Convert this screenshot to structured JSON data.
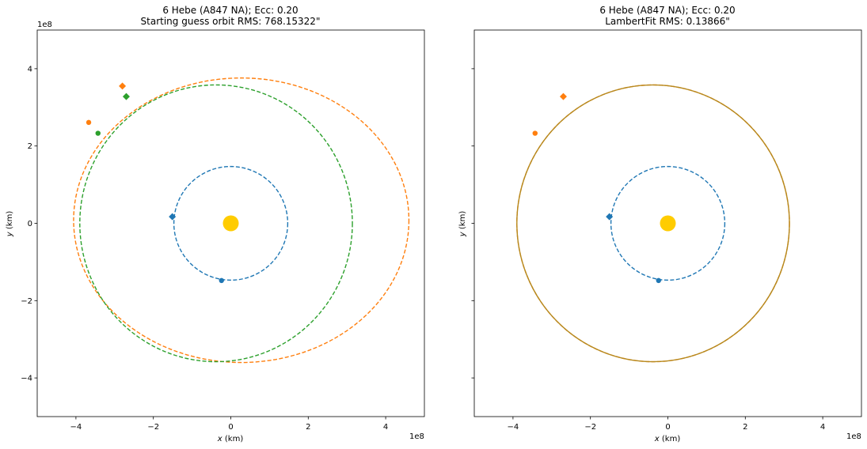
{
  "chart_data": [
    {
      "type": "line",
      "title_line1": "6 Hebe (A847 NA); Ecc: 0.20",
      "title_line2": "Starting guess orbit RMS: 768.15322\"",
      "xlabel_var": "x",
      "xlabel_unit": " (km)",
      "ylabel_var": "y",
      "ylabel_unit": " (km)",
      "xlim": [
        -5.0,
        5.0
      ],
      "ylim": [
        -5.0,
        5.0
      ],
      "x_offset_text": "1e8",
      "y_offset_text": "1e8",
      "xticks": [
        -4,
        -2,
        0,
        2,
        4
      ],
      "xtick_labels": [
        "−4",
        "−2",
        "0",
        "2",
        "4"
      ],
      "yticks": [
        -4,
        -2,
        0,
        2,
        4
      ],
      "ytick_labels": [
        "−4",
        "−2",
        "0",
        "2",
        "4"
      ],
      "show_yticklabels": true,
      "grid": false,
      "sun": {
        "x": 0,
        "y": 0,
        "color": "#FFCC00"
      },
      "series": [
        {
          "orbit": {
            "cx": 0.0,
            "cy": 0.0,
            "rx": 1.47,
            "ry": 1.47
          },
          "style": "dashed",
          "color": "#1f77b4",
          "markers": [
            {
              "x": -1.51,
              "y": 0.17,
              "shape": "diamond"
            },
            {
              "x": -0.24,
              "y": -1.48,
              "shape": "circle"
            }
          ]
        },
        {
          "orbit": {
            "cx": 0.27,
            "cy": 0.08,
            "rx": 4.33,
            "ry": 3.68
          },
          "style": "dashed",
          "color": "#ff7f0e",
          "markers": [
            {
              "x": -2.8,
              "y": 3.55,
              "shape": "diamond"
            },
            {
              "x": -3.67,
              "y": 2.61,
              "shape": "circle"
            }
          ]
        },
        {
          "orbit": {
            "cx": -0.38,
            "cy": 0.0,
            "rx": 3.52,
            "ry": 3.58
          },
          "style": "dashed",
          "color": "#2ca02c",
          "markers": [
            {
              "x": -2.7,
              "y": 3.28,
              "shape": "diamond"
            },
            {
              "x": -3.43,
              "y": 2.33,
              "shape": "circle"
            }
          ]
        }
      ]
    },
    {
      "type": "line",
      "title_line1": "6 Hebe (A847 NA); Ecc: 0.20",
      "title_line2": "LambertFit RMS: 0.13866\"",
      "xlabel_var": "x",
      "xlabel_unit": " (km)",
      "ylabel_var": "y",
      "ylabel_unit": " (km)",
      "xlim": [
        -5.0,
        5.0
      ],
      "ylim": [
        -5.0,
        5.0
      ],
      "x_offset_text": "1e8",
      "y_offset_text": "",
      "xticks": [
        -4,
        -2,
        0,
        2,
        4
      ],
      "xtick_labels": [
        "−4",
        "−2",
        "0",
        "2",
        "4"
      ],
      "yticks": [
        -4,
        -2,
        0,
        2,
        4
      ],
      "ytick_labels": [
        "",
        "",
        "",
        "",
        ""
      ],
      "show_yticklabels": false,
      "grid": false,
      "sun": {
        "x": 0,
        "y": 0,
        "color": "#FFCC00"
      },
      "series": [
        {
          "orbit": {
            "cx": 0.0,
            "cy": 0.0,
            "rx": 1.47,
            "ry": 1.47
          },
          "style": "dashed",
          "color": "#1f77b4",
          "markers": [
            {
              "x": -1.51,
              "y": 0.17,
              "shape": "diamond"
            },
            {
              "x": -0.24,
              "y": -1.48,
              "shape": "circle"
            }
          ]
        },
        {
          "orbit": {
            "cx": -0.38,
            "cy": 0.0,
            "rx": 3.52,
            "ry": 3.58
          },
          "style": "dashed",
          "color": "#ff7f0e",
          "markers": [
            {
              "x": -2.7,
              "y": 3.28,
              "shape": "diamond"
            },
            {
              "x": -3.43,
              "y": 2.33,
              "shape": "circle"
            }
          ]
        },
        {
          "orbit": {
            "cx": -0.38,
            "cy": 0.0,
            "rx": 3.52,
            "ry": 3.58
          },
          "style": "solid",
          "color": "#b5891e",
          "markers": []
        }
      ]
    }
  ]
}
